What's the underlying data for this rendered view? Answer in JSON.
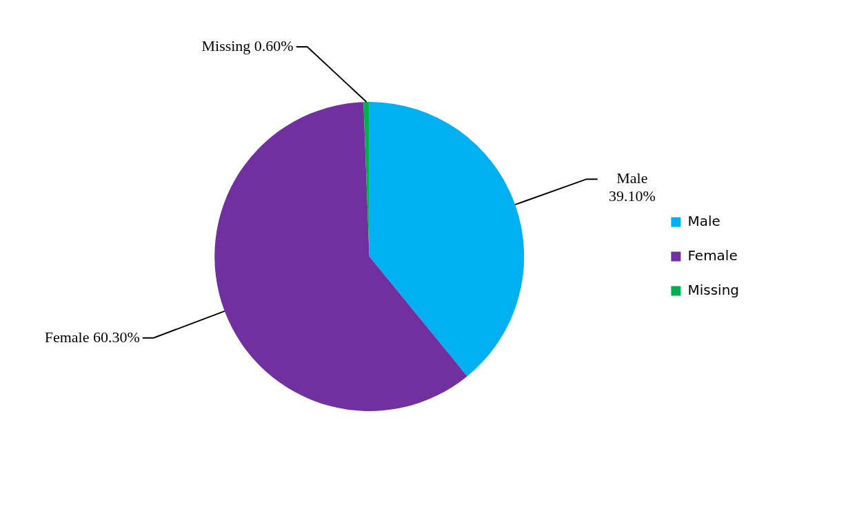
{
  "chart_data": {
    "type": "pie",
    "categories": [
      "Male",
      "Female",
      "Missing"
    ],
    "values": [
      39.1,
      60.3,
      0.6
    ],
    "value_labels": [
      "39.10%",
      "60.30%",
      "0.60%"
    ],
    "colors": [
      "#00b0f0",
      "#7030a0",
      "#00b050"
    ],
    "legend": "right"
  }
}
